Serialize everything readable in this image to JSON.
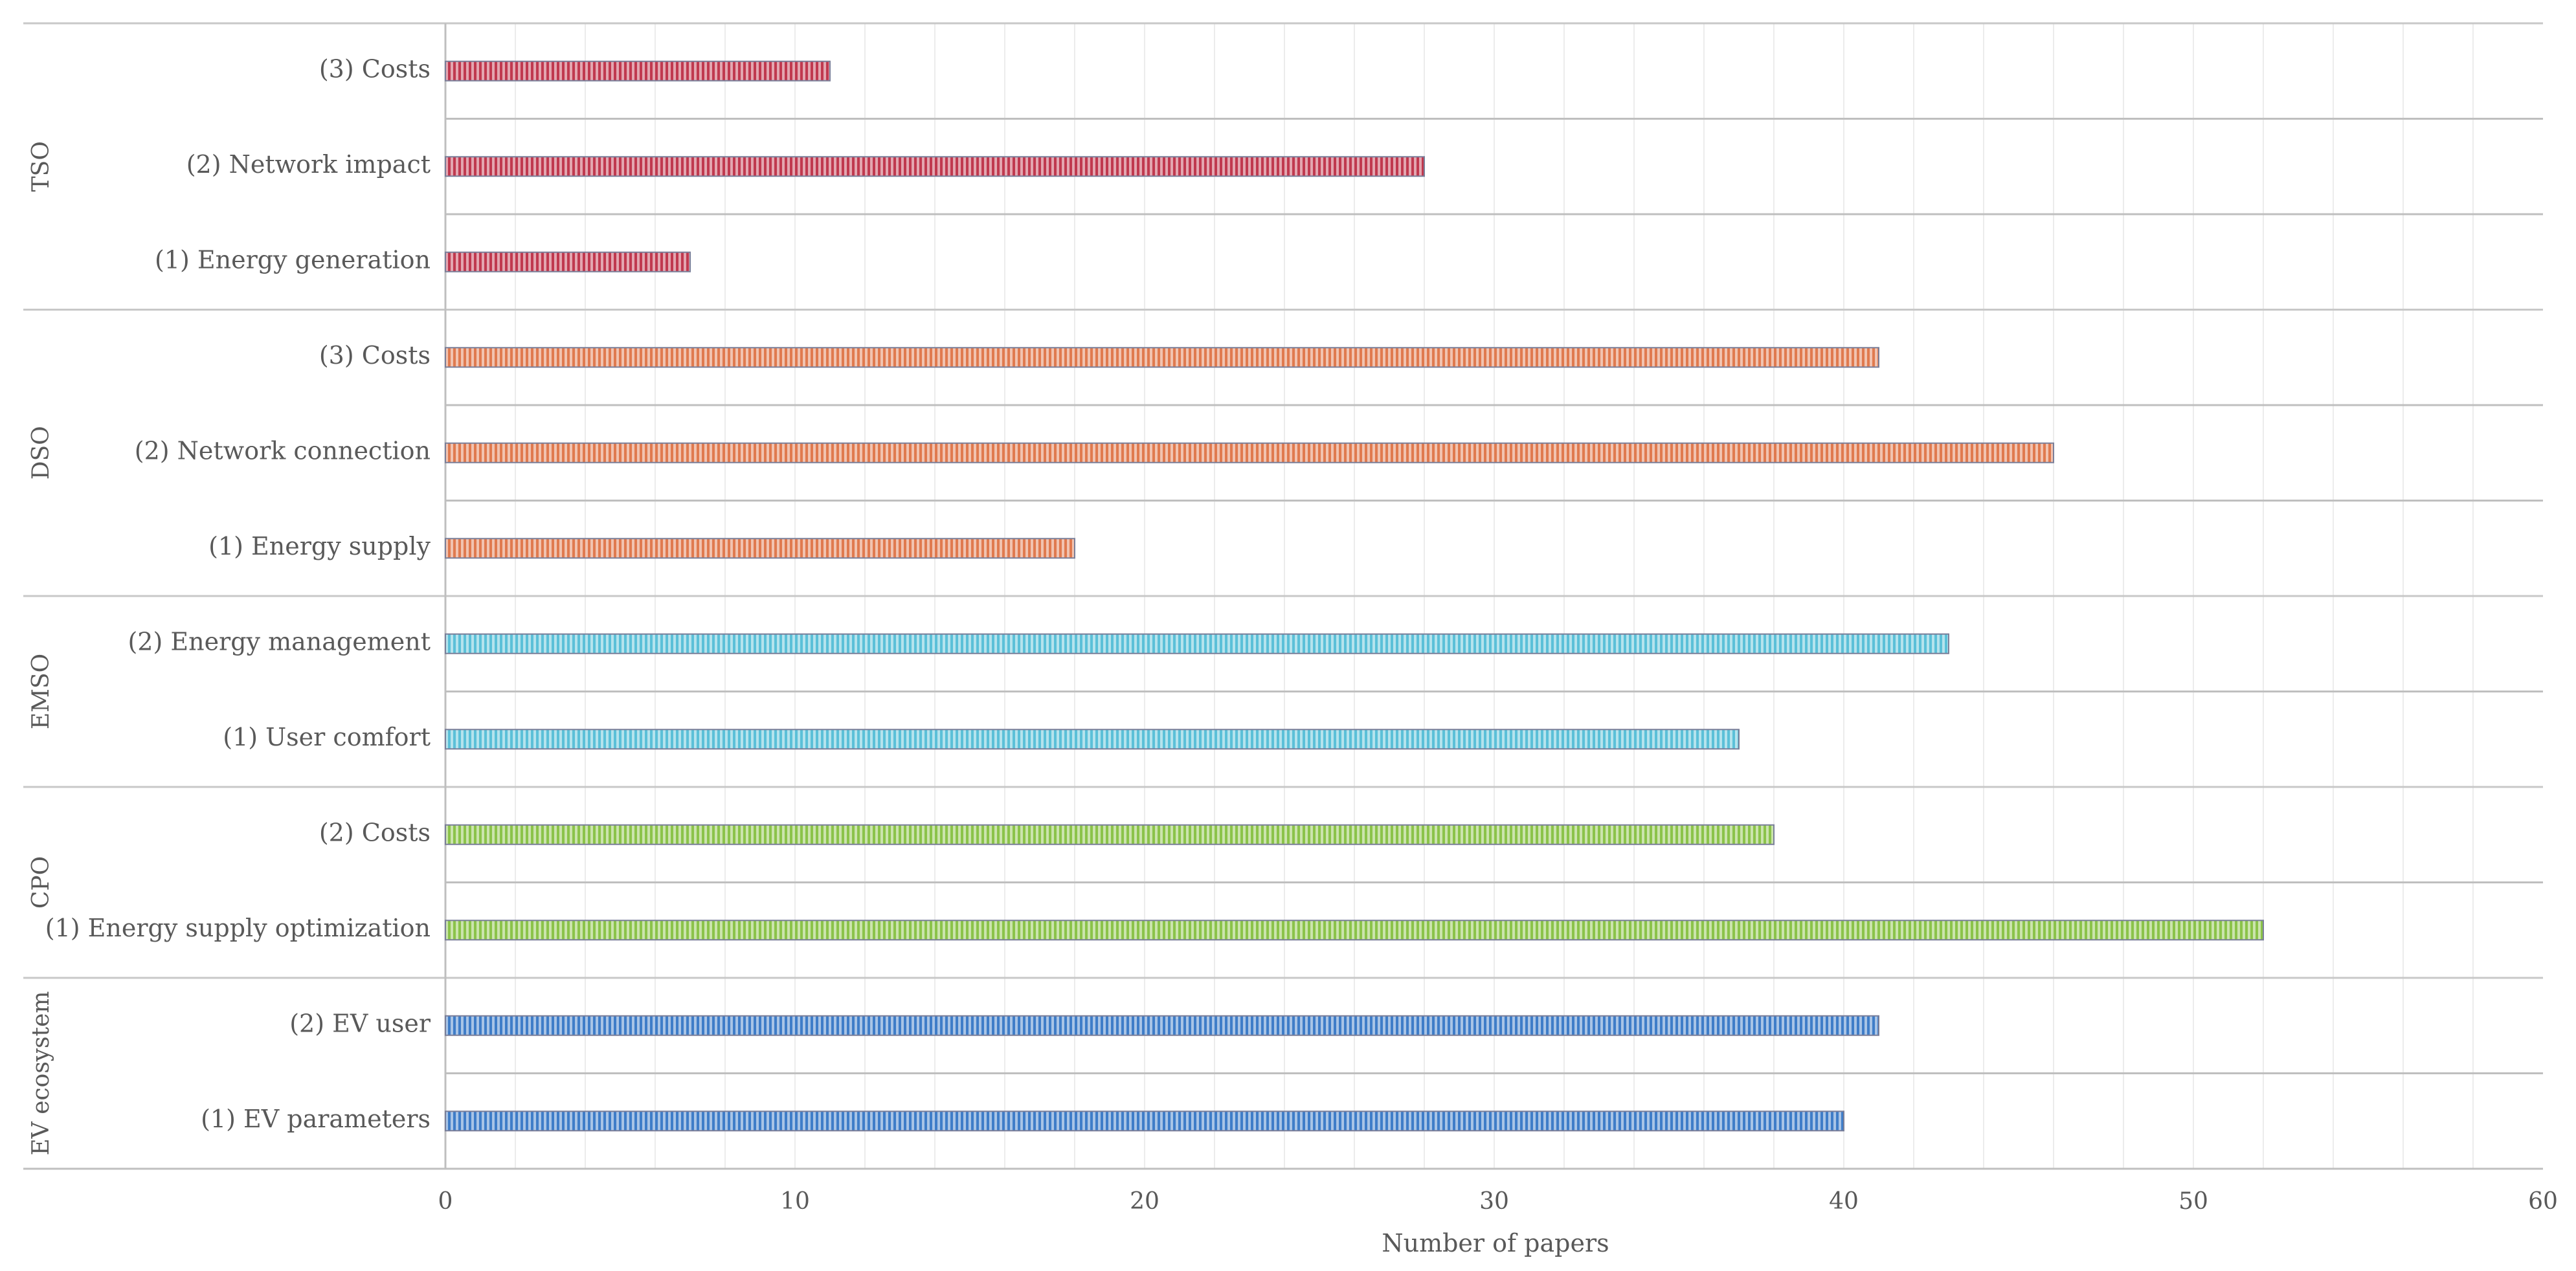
{
  "chart_data": {
    "type": "bar",
    "orientation": "horizontal",
    "xlabel": "Number of papers",
    "xlim": [
      0,
      60
    ],
    "xticks": [
      0,
      10,
      20,
      30,
      40,
      50,
      60
    ],
    "grid": true,
    "groups": [
      {
        "name": "TSO",
        "color": "#C0394F",
        "items": [
          {
            "label": "(3) Costs",
            "value": 11
          },
          {
            "label": "(2) Network impact",
            "value": 28
          },
          {
            "label": "(1) Energy generation",
            "value": 7
          }
        ]
      },
      {
        "name": "DSO",
        "color": "#E07A4F",
        "items": [
          {
            "label": "(3) Costs",
            "value": 41
          },
          {
            "label": "(2) Network connection",
            "value": 46
          },
          {
            "label": "(1) Energy supply",
            "value": 18
          }
        ]
      },
      {
        "name": "EMSO",
        "color": "#5BC0D8",
        "items": [
          {
            "label": "(2) Energy management",
            "value": 43
          },
          {
            "label": "(1) User comfort",
            "value": 37
          }
        ]
      },
      {
        "name": "CPO",
        "color": "#8BC34A",
        "items": [
          {
            "label": "(2) Costs",
            "value": 38
          },
          {
            "label": "(1) Energy supply optimization",
            "value": 52
          }
        ]
      },
      {
        "name": "EV ecosystem",
        "color": "#3F7DC8",
        "items": [
          {
            "label": "(2) EV user",
            "value": 41
          },
          {
            "label": "(1) EV parameters",
            "value": 40
          }
        ]
      }
    ]
  }
}
